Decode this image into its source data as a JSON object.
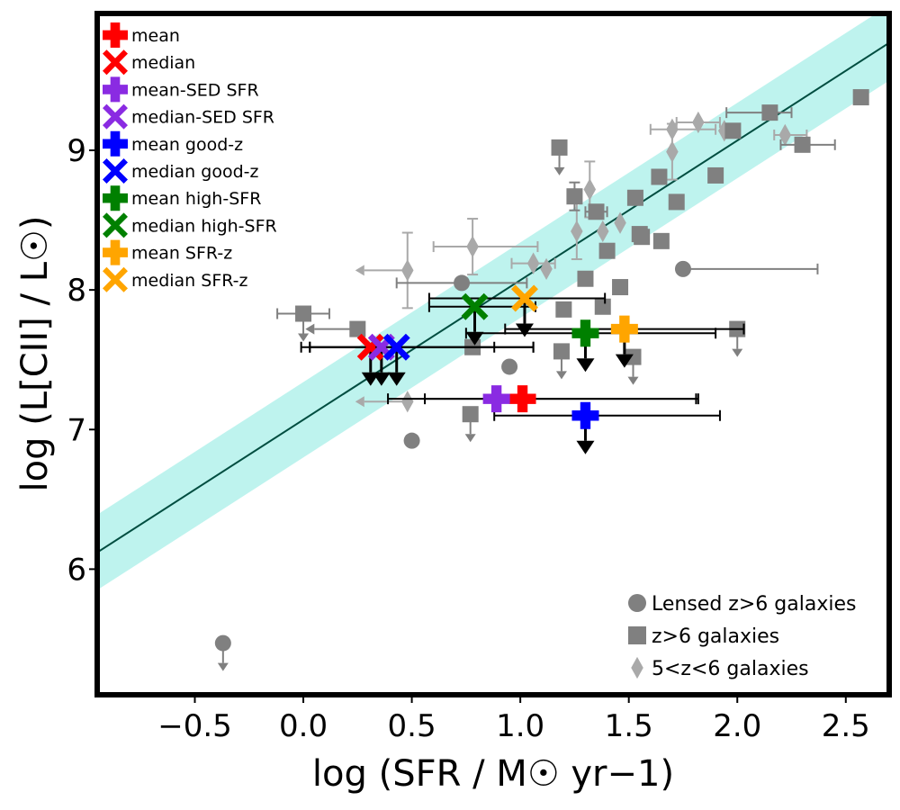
{
  "chart_data": {
    "type": "scatter",
    "xlabel": "log (SFR / M☉ yr−1)",
    "ylabel": "log (L[CII] / L☉)",
    "xlim": [
      -0.95,
      2.7
    ],
    "ylim": [
      5.1,
      9.98
    ],
    "xticks": [
      -0.5,
      0.0,
      0.5,
      1.0,
      1.5,
      2.0,
      2.5
    ],
    "xtick_labels": [
      "−0.5",
      "0.0",
      "0.5",
      "1.0",
      "1.5",
      "2.0",
      "2.5"
    ],
    "yticks": [
      6,
      7,
      8,
      9
    ],
    "ytick_labels": [
      "6",
      "7",
      "8",
      "9"
    ],
    "relation": {
      "slope": 1.0,
      "intercept": 7.07,
      "scatter": 0.27,
      "x_range": [
        -0.95,
        2.7
      ]
    },
    "colors": {
      "mean": "#ff0000",
      "median": "#ff0000",
      "sed": "#8a2be2",
      "goodz": "#0000ff",
      "highsfr": "#008000",
      "sfrz": "#ffa500",
      "lensed": "#808080",
      "z6": "#808080",
      "z56": "#a9a9a9",
      "relation_line": "#004d40",
      "relation_band": "#a8efe8"
    },
    "stack_points": [
      {
        "name": "mean",
        "label": "mean",
        "marker": "plus",
        "color": "#ff0000",
        "x": 1.01,
        "y": 7.22,
        "xerr": [
          0.45,
          0.8
        ],
        "upper": false
      },
      {
        "name": "median",
        "label": "median",
        "marker": "x",
        "color": "#ff0000",
        "x": 0.31,
        "y": 7.59,
        "xerr": [
          0.28,
          0.75
        ],
        "upper": true
      },
      {
        "name": "mean-sed",
        "label": "mean-SED SFR",
        "marker": "plus",
        "color": "#8a2be2",
        "x": 0.89,
        "y": 7.22,
        "xerr": [
          0.5,
          0.93
        ],
        "upper": false
      },
      {
        "name": "median-sed",
        "label": "median-SED SFR",
        "marker": "x",
        "color": "#8a2be2",
        "x": 0.36,
        "y": 7.59,
        "xerr": [
          0.37,
          0.7
        ],
        "upper": true
      },
      {
        "name": "mean-goodz",
        "label": "mean good-z",
        "marker": "plus",
        "color": "#0000ff",
        "x": 1.3,
        "y": 7.1,
        "xerr": [
          0.42,
          0.62
        ],
        "upper": true
      },
      {
        "name": "median-goodz",
        "label": "median good-z",
        "marker": "x",
        "color": "#0000ff",
        "x": 0.43,
        "y": 7.59,
        "xerr": [
          0.4,
          0.45
        ],
        "upper": true
      },
      {
        "name": "mean-highsfr",
        "label": "mean high-SFR",
        "marker": "plus",
        "color": "#008000",
        "x": 1.3,
        "y": 7.69,
        "xerr": [
          0.55,
          0.6
        ],
        "upper": true
      },
      {
        "name": "median-highsfr",
        "label": "median high-SFR",
        "marker": "x",
        "color": "#008000",
        "x": 0.79,
        "y": 7.88,
        "xerr": [
          0.21,
          0.28
        ],
        "upper": true
      },
      {
        "name": "mean-sfrz",
        "label": "mean SFR-z",
        "marker": "plus",
        "color": "#ffa500",
        "x": 1.48,
        "y": 7.72,
        "xerr": [
          0.55,
          0.55
        ],
        "upper": true
      },
      {
        "name": "median-sfrz",
        "label": "median SFR-z",
        "marker": "x",
        "color": "#ffa500",
        "x": 1.02,
        "y": 7.94,
        "xerr": [
          0.44,
          0.37
        ],
        "upper": true
      }
    ],
    "lensed_z6": [
      {
        "x": -0.37,
        "y": 5.47,
        "upper": true
      },
      {
        "x": 0.5,
        "y": 6.92
      },
      {
        "x": 0.73,
        "y": 8.05,
        "xerr": [
          0.3,
          0.3
        ]
      },
      {
        "x": 0.95,
        "y": 7.45
      },
      {
        "x": 1.75,
        "y": 8.15,
        "xerr": [
          0,
          0.62
        ]
      }
    ],
    "z6": [
      {
        "x": 0.0,
        "y": 7.83,
        "xerr": [
          0.12,
          0.12
        ],
        "upper": true
      },
      {
        "x": 0.25,
        "y": 7.72,
        "xleft_arrow": true
      },
      {
        "x": 0.77,
        "y": 7.11,
        "upper": true
      },
      {
        "x": 0.78,
        "y": 7.59
      },
      {
        "x": 1.18,
        "y": 9.02,
        "upper": true
      },
      {
        "x": 1.19,
        "y": 7.56,
        "upper": true
      },
      {
        "x": 1.2,
        "y": 7.86
      },
      {
        "x": 1.25,
        "y": 8.67,
        "yerr": 0.1
      },
      {
        "x": 1.3,
        "y": 8.08
      },
      {
        "x": 1.35,
        "y": 8.56,
        "xerr": [
          0.05,
          0.05
        ]
      },
      {
        "x": 1.38,
        "y": 7.88
      },
      {
        "x": 1.4,
        "y": 8.28
      },
      {
        "x": 1.46,
        "y": 8.02
      },
      {
        "x": 1.52,
        "y": 7.52,
        "upper": true
      },
      {
        "x": 1.53,
        "y": 8.66
      },
      {
        "x": 1.55,
        "y": 8.4
      },
      {
        "x": 1.56,
        "y": 8.38
      },
      {
        "x": 1.64,
        "y": 8.81
      },
      {
        "x": 1.65,
        "y": 8.35
      },
      {
        "x": 1.72,
        "y": 8.63
      },
      {
        "x": 1.9,
        "y": 8.82
      },
      {
        "x": 1.98,
        "y": 9.14
      },
      {
        "x": 2.0,
        "y": 7.72,
        "upper": true
      },
      {
        "x": 2.15,
        "y": 9.27,
        "xerr": [
          0.2,
          0.1
        ]
      },
      {
        "x": 2.3,
        "y": 9.04,
        "xerr": [
          0.1,
          0.15
        ]
      },
      {
        "x": 2.57,
        "y": 9.38
      }
    ],
    "z5to6": [
      {
        "x": 0.48,
        "y": 8.14,
        "yerr": 0.27,
        "xleft_arrow": true
      },
      {
        "x": 0.48,
        "y": 7.2,
        "xleft_arrow": true
      },
      {
        "x": 0.78,
        "y": 8.31,
        "yerr": 0.2,
        "xerr": [
          0.18,
          0.3
        ]
      },
      {
        "x": 1.06,
        "y": 8.19,
        "xerr": [
          0.1,
          0.1
        ]
      },
      {
        "x": 1.12,
        "y": 8.15
      },
      {
        "x": 1.26,
        "y": 8.42,
        "yerr": 0.2
      },
      {
        "x": 1.32,
        "y": 8.72,
        "yerr": 0.2
      },
      {
        "x": 1.38,
        "y": 8.42
      },
      {
        "x": 1.46,
        "y": 8.48
      },
      {
        "x": 1.7,
        "y": 8.99,
        "yerr": 0.2
      },
      {
        "x": 1.7,
        "y": 9.15,
        "xerr": [
          0.1,
          0.2
        ]
      },
      {
        "x": 1.82,
        "y": 9.2,
        "xerr": [
          0.1,
          0.1
        ]
      },
      {
        "x": 1.94,
        "y": 9.14
      },
      {
        "x": 2.22,
        "y": 9.11,
        "xerr": [
          0.05,
          0.1
        ]
      }
    ],
    "legend_bottom": [
      {
        "name": "lensed",
        "marker": "circle",
        "label": "Lensed z>6 galaxies"
      },
      {
        "name": "z6",
        "marker": "square",
        "label": "z>6 galaxies"
      },
      {
        "name": "z5to6",
        "marker": "diamond",
        "label": "5<z<6 galaxies"
      }
    ]
  }
}
